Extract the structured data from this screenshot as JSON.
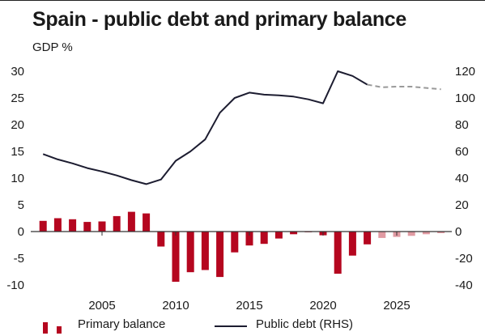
{
  "chart_data": {
    "type": "bar+line",
    "title": "Spain - public debt and primary balance",
    "subtitle": "GDP %",
    "x": [
      2001,
      2002,
      2003,
      2004,
      2005,
      2006,
      2007,
      2008,
      2009,
      2010,
      2011,
      2012,
      2013,
      2014,
      2015,
      2016,
      2017,
      2018,
      2019,
      2020,
      2021,
      2022,
      2023,
      2024,
      2025,
      2026,
      2027,
      2028
    ],
    "x_ticks": [
      2005,
      2010,
      2015,
      2020,
      2025
    ],
    "y_left": {
      "ticks": [
        30,
        25,
        20,
        15,
        10,
        5,
        0,
        -5,
        -10
      ],
      "range": [
        -10,
        30
      ]
    },
    "y_right": {
      "ticks": [
        120,
        100,
        80,
        60,
        40,
        20,
        0,
        -20,
        -40
      ],
      "range": [
        -40,
        120
      ]
    },
    "series": [
      {
        "name": "Primary balance",
        "type": "bar",
        "axis": "left",
        "color": "#b5061f",
        "forecast_color": "#e09aa2",
        "forecast_from": 2024,
        "values": [
          2.0,
          2.5,
          2.3,
          1.8,
          1.9,
          2.9,
          3.7,
          3.4,
          -2.8,
          -9.4,
          -7.6,
          -7.2,
          -8.5,
          -3.9,
          -2.6,
          -2.3,
          -1.3,
          -0.5,
          -0.1,
          -0.7,
          -7.9,
          -4.5,
          -2.4,
          -1.2,
          -1.0,
          -0.8,
          -0.5,
          -0.3
        ]
      },
      {
        "name": "Public debt (RHS)",
        "type": "line",
        "axis": "right",
        "color": "#1c1c30",
        "forecast_color": "#999999",
        "forecast_from": 2023,
        "values": [
          58,
          54,
          51,
          47.5,
          45,
          42,
          38.5,
          35.5,
          39,
          53,
          60,
          69,
          89,
          100,
          104,
          102.5,
          102,
          101,
          99,
          96,
          120,
          116.5,
          110,
          108,
          108.5,
          108.5,
          107.5,
          106.5
        ]
      }
    ],
    "legend": [
      "Primary balance",
      "Public debt (RHS)"
    ],
    "legend_position": "bottom"
  }
}
